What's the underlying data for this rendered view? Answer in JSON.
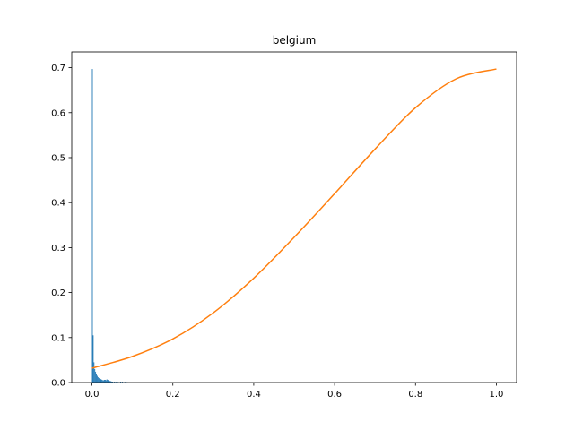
{
  "chart_data": {
    "type": "bar",
    "title": "belgium",
    "xlabel": "",
    "ylabel": "",
    "xlim": [
      -0.05,
      1.05
    ],
    "ylim": [
      0,
      0.735
    ],
    "xticks": [
      0.0,
      0.2,
      0.4,
      0.6,
      0.8,
      1.0
    ],
    "xtick_labels": [
      "0.0",
      "0.2",
      "0.4",
      "0.6",
      "0.8",
      "1.0"
    ],
    "yticks": [
      0.0,
      0.1,
      0.2,
      0.3,
      0.4,
      0.5,
      0.6,
      0.7
    ],
    "ytick_labels": [
      "0.0",
      "0.1",
      "0.2",
      "0.3",
      "0.4",
      "0.5",
      "0.6",
      "0.7"
    ],
    "grid": false,
    "series": [
      {
        "kind": "histogram",
        "color": "#1f77b4",
        "bin_width": 0.002,
        "bins": [
          {
            "x": 0.0,
            "y": 0.697
          },
          {
            "x": 0.002,
            "y": 0.105
          },
          {
            "x": 0.004,
            "y": 0.045
          },
          {
            "x": 0.006,
            "y": 0.03
          },
          {
            "x": 0.008,
            "y": 0.024
          },
          {
            "x": 0.01,
            "y": 0.02
          },
          {
            "x": 0.012,
            "y": 0.015
          },
          {
            "x": 0.014,
            "y": 0.012
          },
          {
            "x": 0.016,
            "y": 0.01
          },
          {
            "x": 0.018,
            "y": 0.009
          },
          {
            "x": 0.02,
            "y": 0.008
          },
          {
            "x": 0.022,
            "y": 0.007
          },
          {
            "x": 0.024,
            "y": 0.006
          },
          {
            "x": 0.026,
            "y": 0.005
          },
          {
            "x": 0.028,
            "y": 0.005
          },
          {
            "x": 0.03,
            "y": 0.006
          },
          {
            "x": 0.032,
            "y": 0.006
          },
          {
            "x": 0.034,
            "y": 0.005
          },
          {
            "x": 0.036,
            "y": 0.007
          },
          {
            "x": 0.038,
            "y": 0.006
          },
          {
            "x": 0.04,
            "y": 0.005
          },
          {
            "x": 0.042,
            "y": 0.004
          },
          {
            "x": 0.044,
            "y": 0.003
          },
          {
            "x": 0.046,
            "y": 0.003
          },
          {
            "x": 0.048,
            "y": 0.002
          },
          {
            "x": 0.05,
            "y": 0.002
          },
          {
            "x": 0.054,
            "y": 0.002
          },
          {
            "x": 0.058,
            "y": 0.002
          },
          {
            "x": 0.062,
            "y": 0.002
          },
          {
            "x": 0.066,
            "y": 0.001
          },
          {
            "x": 0.07,
            "y": 0.002
          },
          {
            "x": 0.074,
            "y": 0.002
          },
          {
            "x": 0.078,
            "y": 0.001
          },
          {
            "x": 0.082,
            "y": 0.002
          },
          {
            "x": 0.086,
            "y": 0.001
          }
        ]
      },
      {
        "kind": "line",
        "color": "#ff7f0e",
        "x": [
          0.0,
          0.1,
          0.2,
          0.3,
          0.4,
          0.5,
          0.6,
          0.7,
          0.8,
          0.9,
          1.0
        ],
        "y": [
          0.032,
          0.058,
          0.097,
          0.155,
          0.232,
          0.323,
          0.42,
          0.519,
          0.611,
          0.675,
          0.697
        ]
      }
    ]
  }
}
